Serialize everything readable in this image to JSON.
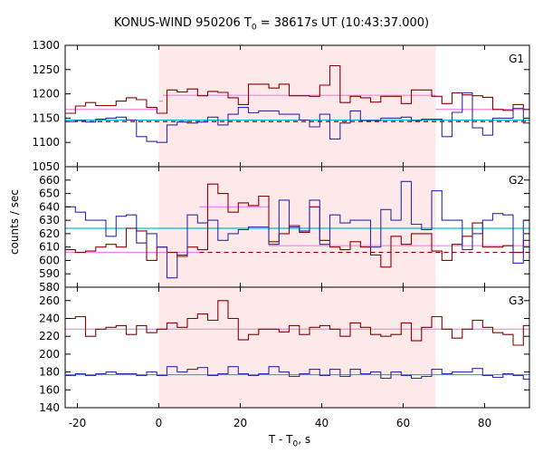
{
  "chart_data": {
    "type": "line",
    "title": {
      "prefix": "KONUS-WIND 950206 T",
      "sub": "0",
      "suffix": " = 38617s UT (10:43:37.000)"
    },
    "xlabel": {
      "prefix": "T - T",
      "sub": "0",
      "suffix": ", s"
    },
    "ylabel": "counts / sec",
    "xlim": [
      -23,
      91
    ],
    "x_ticks": [
      "-20",
      "0",
      "20",
      "40",
      "60",
      "80"
    ],
    "x_tick_values": [
      -20,
      0,
      20,
      40,
      60,
      80
    ],
    "shaded_interval": [
      0,
      68
    ],
    "shade_color": "#fde8ea",
    "bin_edges": [
      -23,
      -20.5,
      -18,
      -15.5,
      -13,
      -10.5,
      -8,
      -5.5,
      -3,
      -0.5,
      2,
      4.5,
      7,
      9.5,
      12,
      14.5,
      17,
      19.5,
      22,
      24.5,
      27,
      29.5,
      32,
      34.5,
      37,
      39.5,
      42,
      44.5,
      47,
      49.5,
      52,
      54.5,
      57,
      59.5,
      62,
      64.5,
      67,
      69.5,
      72,
      74.5,
      77,
      79.5,
      82,
      84.5,
      87,
      89.5,
      91
    ],
    "panels": [
      {
        "label": "G1",
        "ylim": [
          1050,
          1300
        ],
        "y_ticks": [
          "1050",
          "1100",
          "1150",
          "1200",
          "1250",
          "1300"
        ],
        "y_tick_values": [
          1050,
          1100,
          1150,
          1200,
          1250,
          1300
        ],
        "series": [
          {
            "color": "#8b0000",
            "values": [
              1160,
              1175,
              1182,
              1176,
              1176,
              1185,
              1192,
              1188,
              1172,
              1160,
              1208,
              1204,
              1210,
              1196,
              1205,
              1203,
              1192,
              1178,
              1220,
              1220,
              1212,
              1220,
              1196,
              1196,
              1195,
              1218,
              1258,
              1182,
              1195,
              1192,
              1183,
              1195,
              1195,
              1180,
              1208,
              1208,
              1195,
              1180,
              1202,
              1198,
              1196,
              1193,
              1168,
              1166,
              1178,
              1168
            ]
          },
          {
            "color": "#2e2ea8",
            "values": [
              1143,
              1145,
              1142,
              1148,
              1150,
              1152,
              1146,
              1112,
              1102,
              1100,
              1136,
              1142,
              1140,
              1142,
              1152,
              1136,
              1158,
              1172,
              1161,
              1165,
              1165,
              1158,
              1158,
              1146,
              1132,
              1158,
              1107,
              1140,
              1165,
              1145,
              1145,
              1150,
              1150,
              1152,
              1145,
              1148,
              1148,
              1112,
              1162,
              1202,
              1130,
              1115,
              1150,
              1150,
              1170,
              1140
            ]
          }
        ],
        "fits": [
          {
            "color": "#ee82ee",
            "style": "solid",
            "segments": [
              [
                -23,
                1168,
                0,
                1168
              ],
              [
                0,
                1185,
                1,
                1185
              ],
              [
                1,
                1197,
                68,
                1197
              ],
              [
                68,
                1168,
                91,
                1168
              ]
            ]
          },
          {
            "color": "#8b0000",
            "style": "dashed",
            "segments": [
              [
                -23,
                1143,
                91,
                1143
              ]
            ]
          },
          {
            "color": "#00bcd4",
            "style": "solid",
            "segments": [
              [
                -23,
                1146,
                91,
                1146
              ]
            ]
          }
        ]
      },
      {
        "label": "G2",
        "ylim": [
          580,
          670
        ],
        "y_ticks": [
          "580",
          "590",
          "600",
          "610",
          "620",
          "630",
          "640",
          "650",
          "660"
        ],
        "y_tick_values": [
          580,
          590,
          600,
          610,
          620,
          630,
          640,
          650,
          660
        ],
        "series": [
          {
            "color": "#8b0000",
            "values": [
              608,
              606,
              607,
              610,
              612,
              610,
              624,
              622,
              600,
              610,
              606,
              603,
              610,
              608,
              657,
              650,
              636,
              643,
              641,
              648,
              614,
              620,
              626,
              621,
              640,
              615,
              610,
              608,
              614,
              610,
              604,
              595,
              618,
              612,
              620,
              620,
              607,
              600,
              612,
              618,
              628,
              610,
              610,
              611,
              606,
              615
            ]
          },
          {
            "color": "#2e2ea8",
            "values": [
              640,
              636,
              630,
              630,
              618,
              633,
              634,
              613,
              620,
              610,
              587,
              604,
              634,
              628,
              630,
              615,
              620,
              623,
              625,
              625,
              612,
              645,
              625,
              622,
              645,
              612,
              634,
              628,
              630,
              630,
              610,
              638,
              630,
              659,
              627,
              623,
              652,
              630,
              630,
              608,
              620,
              630,
              635,
              634,
              598,
              630
            ]
          }
        ],
        "fits": [
          {
            "color": "#ee82ee",
            "style": "solid",
            "segments": [
              [
                -23,
                606,
                10,
                606
              ],
              [
                10,
                640,
                27,
                640
              ],
              [
                27,
                611,
                91,
                611
              ]
            ]
          },
          {
            "color": "#8b0000",
            "style": "dashed",
            "segments": [
              [
                10,
                606,
                91,
                606
              ]
            ]
          },
          {
            "color": "#00bcd4",
            "style": "solid",
            "segments": [
              [
                -23,
                624,
                91,
                624
              ]
            ]
          }
        ]
      },
      {
        "label": "G3",
        "ylim": [
          140,
          275
        ],
        "y_ticks": [
          "140",
          "160",
          "180",
          "200",
          "220",
          "240",
          "260"
        ],
        "y_tick_values": [
          140,
          160,
          180,
          200,
          220,
          240,
          260
        ],
        "series": [
          {
            "color": "#8b0000",
            "values": [
              240,
              242,
              220,
              228,
              230,
              232,
              222,
              232,
              224,
              228,
              235,
              230,
              240,
              245,
              238,
              260,
              240,
              216,
              222,
              228,
              228,
              225,
              232,
              222,
              230,
              232,
              228,
              220,
              235,
              230,
              222,
              220,
              222,
              235,
              215,
              230,
              242,
              228,
              218,
              228,
              238,
              230,
              224,
              222,
              210,
              232
            ]
          },
          {
            "color": "#2e2ea8",
            "values": [
              176,
              178,
              176,
              178,
              180,
              178,
              178,
              176,
              180,
              176,
              186,
              180,
              183,
              185,
              176,
              178,
              186,
              178,
              176,
              178,
              186,
              180,
              175,
              178,
              183,
              176,
              183,
              175,
              183,
              178,
              180,
              173,
              180,
              176,
              173,
              175,
              183,
              178,
              180,
              180,
              184,
              176,
              174,
              178,
              176,
              172
            ]
          }
        ],
        "fits": [
          {
            "color": "#ee82ee",
            "style": "solid",
            "segments": [
              [
                -23,
                228,
                91,
                228
              ]
            ]
          },
          {
            "color": "#00bcd4",
            "style": "solid",
            "segments": [
              [
                -23,
                177,
                91,
                177
              ]
            ]
          }
        ]
      }
    ]
  }
}
